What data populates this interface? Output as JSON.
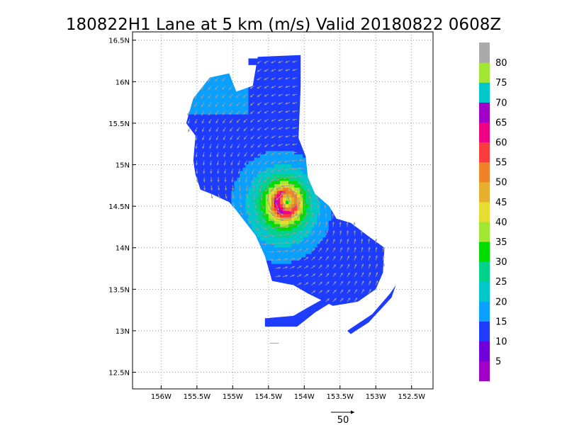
{
  "chart_data": {
    "type": "heatmap",
    "title": "180822H1 Lane at 5 km (m/s) Valid 20180822 0608Z",
    "xlim": [
      -156.4,
      -152.2
    ],
    "ylim": [
      12.3,
      16.6
    ],
    "x_ticks": [
      {
        "value": -156.0,
        "label": "156W"
      },
      {
        "value": -155.5,
        "label": "155.5W"
      },
      {
        "value": -155.0,
        "label": "155W"
      },
      {
        "value": -154.5,
        "label": "154.5W"
      },
      {
        "value": -154.0,
        "label": "154W"
      },
      {
        "value": -153.5,
        "label": "153.5W"
      },
      {
        "value": -153.0,
        "label": "153W"
      },
      {
        "value": -152.5,
        "label": "152.5W"
      }
    ],
    "y_ticks": [
      {
        "value": 12.5,
        "label": "12.5N"
      },
      {
        "value": 13.0,
        "label": "13N"
      },
      {
        "value": 13.5,
        "label": "13.5N"
      },
      {
        "value": 14.0,
        "label": "14N"
      },
      {
        "value": 14.5,
        "label": "14.5N"
      },
      {
        "value": 15.0,
        "label": "15N"
      },
      {
        "value": 15.5,
        "label": "15.5N"
      },
      {
        "value": 16.0,
        "label": "16N"
      },
      {
        "value": 16.5,
        "label": "16.5N"
      }
    ],
    "grid": true,
    "colorbar": {
      "placement": "right",
      "levels": [
        0,
        5,
        10,
        15,
        20,
        25,
        30,
        35,
        40,
        45,
        50,
        55,
        60,
        65,
        70,
        75,
        80,
        85
      ],
      "labels": [
        "5",
        "10",
        "15",
        "20",
        "25",
        "30",
        "35",
        "40",
        "45",
        "50",
        "55",
        "60",
        "65",
        "70",
        "75",
        "80"
      ],
      "colors": [
        "#a000c8",
        "#6e00dc",
        "#1e3cff",
        "#0aa0ff",
        "#00c8c8",
        "#00d28c",
        "#00dc00",
        "#a0e632",
        "#e6dc32",
        "#e6af2d",
        "#f08228",
        "#fa3c3c",
        "#f00082",
        "#a000c8",
        "#00c8c8",
        "#a0e632",
        "#aaaaaa"
      ]
    },
    "storm_center": {
      "lon": -154.25,
      "lat": 14.55
    },
    "max_wind": 62,
    "radius_max_wind_deg": 0.14,
    "reference_vector": {
      "label": "50",
      "value": 50,
      "lon": -153.85,
      "lat": 12.15
    }
  }
}
